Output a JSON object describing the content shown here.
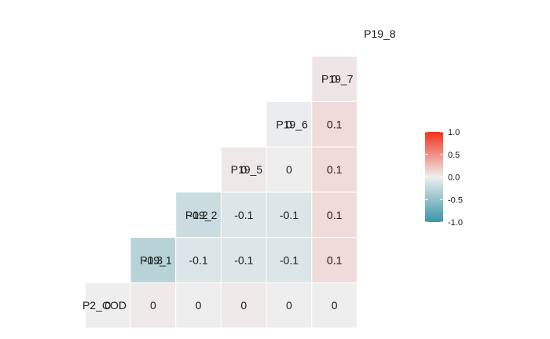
{
  "chart_data": {
    "type": "heatmap",
    "variables": [
      "P2_COD",
      "P19_1",
      "P19_2",
      "P19_5",
      "P19_6",
      "P19_7",
      "P19_8"
    ],
    "cells": [
      {
        "row": "P2_COD",
        "col": "P2_COD",
        "value": 0,
        "label": "0"
      },
      {
        "row": "P2_COD",
        "col": "P19_1",
        "value": 0.02,
        "label": "0"
      },
      {
        "row": "P2_COD",
        "col": "P19_2",
        "value": 0,
        "label": "0"
      },
      {
        "row": "P2_COD",
        "col": "P19_5",
        "value": 0.03,
        "label": "0"
      },
      {
        "row": "P2_COD",
        "col": "P19_6",
        "value": 0,
        "label": "0"
      },
      {
        "row": "P2_COD",
        "col": "P19_7",
        "value": 0,
        "label": "0"
      },
      {
        "row": "P19_1",
        "col": "P19_1",
        "value": -0.3,
        "label": "-0.3"
      },
      {
        "row": "P19_1",
        "col": "P19_2",
        "value": -0.1,
        "label": "-0.1"
      },
      {
        "row": "P19_1",
        "col": "P19_5",
        "value": -0.1,
        "label": "-0.1"
      },
      {
        "row": "P19_1",
        "col": "P19_6",
        "value": -0.1,
        "label": "-0.1"
      },
      {
        "row": "P19_1",
        "col": "P19_7",
        "value": 0.1,
        "label": "0.1"
      },
      {
        "row": "P19_2",
        "col": "P19_2",
        "value": -0.2,
        "label": "-0.2"
      },
      {
        "row": "P19_2",
        "col": "P19_5",
        "value": -0.1,
        "label": "-0.1"
      },
      {
        "row": "P19_2",
        "col": "P19_6",
        "value": -0.1,
        "label": "-0.1"
      },
      {
        "row": "P19_2",
        "col": "P19_7",
        "value": 0.1,
        "label": "0.1"
      },
      {
        "row": "P19_5",
        "col": "P19_5",
        "value": 0.03,
        "label": "0"
      },
      {
        "row": "P19_5",
        "col": "P19_6",
        "value": 0,
        "label": "0"
      },
      {
        "row": "P19_5",
        "col": "P19_7",
        "value": 0.1,
        "label": "0.1"
      },
      {
        "row": "P19_6",
        "col": "P19_6",
        "value": -0.02,
        "label": "0"
      },
      {
        "row": "P19_6",
        "col": "P19_7",
        "value": 0.1,
        "label": "0.1"
      },
      {
        "row": "P19_7",
        "col": "P19_7",
        "value": 0.04,
        "label": "0"
      }
    ],
    "color_scale": {
      "low": "#3a95a6",
      "mid": "#eeeeee",
      "high": "#f4311c",
      "limits": [
        -1.0,
        1.0
      ]
    },
    "legend": {
      "position": "right",
      "ticks": [
        "1.0",
        "0.5",
        "0.0",
        "-0.5",
        "-1.0"
      ],
      "tick_values": [
        1.0,
        0.5,
        0.0,
        -0.5,
        -1.0
      ]
    },
    "grid": false
  }
}
